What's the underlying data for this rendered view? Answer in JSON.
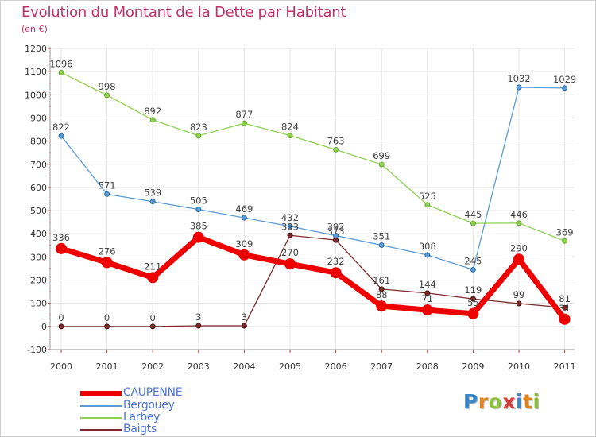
{
  "title": "Evolution du Montant de la Dette par Habitant",
  "subtitle": "(en €)",
  "logo": {
    "letters": [
      {
        "ch": "P",
        "color": "#3a86c8"
      },
      {
        "ch": "r",
        "color": "#e0821e"
      },
      {
        "ch": "o",
        "color": "#8bc13d"
      },
      {
        "ch": "x",
        "color": "#d63b3b"
      },
      {
        "ch": "i",
        "color": "#3a86c8"
      },
      {
        "ch": "t",
        "color": "#e0821e"
      },
      {
        "ch": "i",
        "color": "#8bc13d"
      }
    ]
  },
  "chart_data": {
    "type": "line",
    "title": "Evolution du Montant de la Dette par Habitant",
    "subtitle": "(en €)",
    "x": [
      "2000",
      "2001",
      "2002",
      "2003",
      "2004",
      "2005",
      "2006",
      "2007",
      "2008",
      "2009",
      "2010",
      "2011"
    ],
    "ylim": [
      -100,
      1200
    ],
    "yticks": [
      "-100",
      "0",
      "100",
      "200",
      "300",
      "400",
      "500",
      "600",
      "700",
      "800",
      "900",
      "1000",
      "1100",
      "1200"
    ],
    "grid": true,
    "legend_position": "bottom-left",
    "series": [
      {
        "name": "CAUPENNE",
        "color": "#ee0000",
        "values": [
          336,
          276,
          211,
          385,
          309,
          270,
          232,
          88,
          71,
          55,
          290,
          31
        ]
      },
      {
        "name": "Bergouey",
        "color": "#5b9bd5",
        "values": [
          822,
          571,
          539,
          505,
          469,
          432,
          392,
          351,
          308,
          245,
          1032,
          1029
        ]
      },
      {
        "name": "Larbey",
        "color": "#8fd14f",
        "values": [
          1096,
          998,
          892,
          823,
          877,
          824,
          763,
          699,
          525,
          445,
          446,
          369
        ]
      },
      {
        "name": "Baigts",
        "color": "#7b2a2a",
        "values": [
          0,
          0,
          0,
          3,
          3,
          393,
          373,
          161,
          144,
          119,
          99,
          81
        ]
      }
    ]
  }
}
